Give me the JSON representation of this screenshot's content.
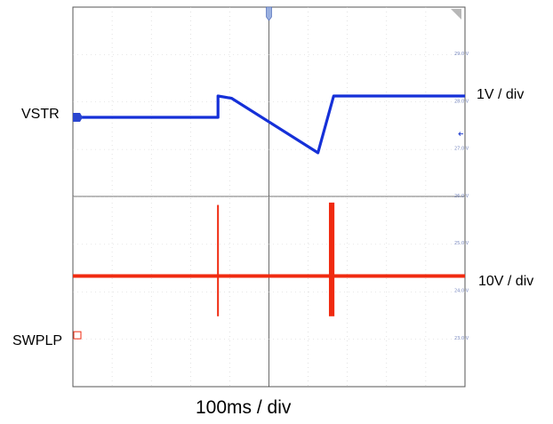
{
  "chart_data": {
    "type": "line",
    "title": "",
    "x_unit": "ms",
    "time_per_div": "100ms / div",
    "x_range": [
      -500,
      500
    ],
    "trigger_time": 0,
    "channels": [
      {
        "id": "1",
        "name": "VSTR",
        "scale": "1V / div",
        "color": "#1530d8",
        "points": [
          [
            -500,
            27.65
          ],
          [
            -130,
            27.65
          ],
          [
            -130,
            28.1
          ],
          [
            -95,
            28.05
          ],
          [
            125,
            26.9
          ],
          [
            165,
            28.1
          ],
          [
            500,
            28.1
          ]
        ]
      },
      {
        "id": "2",
        "name": "SWPLP",
        "scale": "10V / div",
        "color": "#f02a10",
        "baseline": 24.3,
        "spikes": [
          {
            "x": -130,
            "top": 25.8,
            "bottom": 23.45,
            "width_ms": 4
          },
          {
            "x": 160,
            "top": 25.85,
            "bottom": 23.45,
            "width_ms": 14
          }
        ]
      }
    ],
    "tick_labels": [
      "29.0 V",
      "28.0 V",
      "27.0 V",
      "26.0 V",
      "25.0 V",
      "24.0 V",
      "23.0 V"
    ],
    "tick_values": [
      29,
      28,
      27,
      26,
      25,
      24,
      23
    ],
    "grid": true
  },
  "labels": {
    "vstr": "VSTR",
    "vstr_scale": "1V / div",
    "swplp": "SWPLP",
    "swplp_scale": "10V / div",
    "time_scale": "100ms / div"
  }
}
